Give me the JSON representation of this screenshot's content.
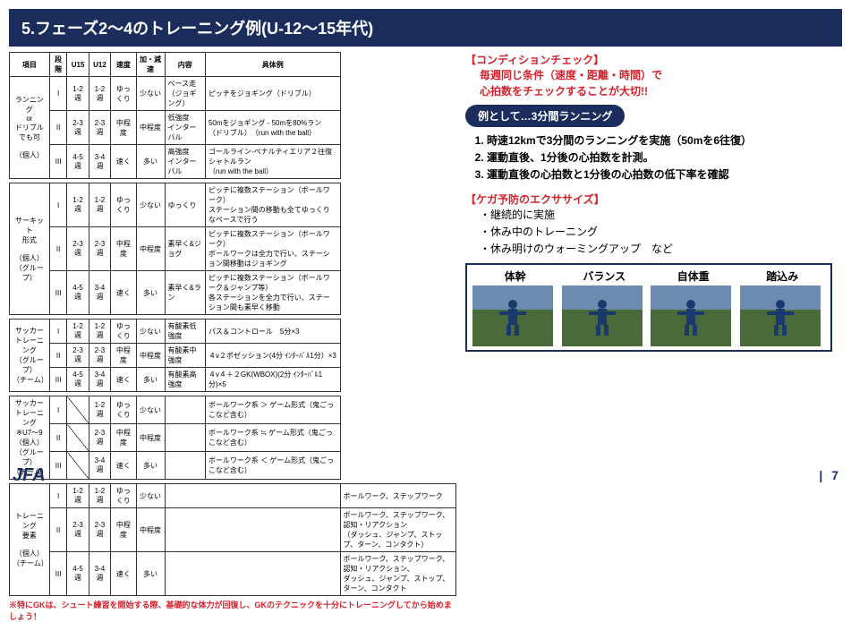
{
  "header": "5.フェーズ2〜4のトレーニング例(U-12〜15年代)",
  "table": {
    "headers": [
      "項目",
      "段階",
      "U15",
      "U12",
      "速度",
      "加・減速",
      "内容",
      "具体例"
    ],
    "groups": [
      {
        "name": "ランニング\nor\nドリブル\nでも可\n\n（個人）",
        "rows": [
          [
            "I",
            "1-2週",
            "1-2週",
            "ゆっくり",
            "少ない",
            "ベース走\n（ジョギング）",
            "ピッチをジョギング（ドリブル）"
          ],
          [
            "II",
            "2-3週",
            "2-3週",
            "中程度",
            "中程度",
            "低強度\nインターバル",
            "50mをジョギング - 50mを80%ラン\n（ドリブル）　（run with the ball）"
          ],
          [
            "III",
            "4-5週",
            "3-4週",
            "速く",
            "多い",
            "高強度\nインターバル",
            "ゴールライン-ペナルティエリア２往復シャトルラン\n（run with the ball）"
          ]
        ]
      },
      {
        "name": "サーキット\n形式\n\n（個人）\n（グループ）",
        "rows": [
          [
            "I",
            "1-2週",
            "1-2週",
            "ゆっくり",
            "少ない",
            "ゆっくり",
            "ピッチに複数ステーション（ボールワーク）\nステーション間の移動も全てゆっくりなペースで行う"
          ],
          [
            "II",
            "2-3週",
            "2-3週",
            "中程度",
            "中程度",
            "素早く&ジョグ",
            "ピッチに複数ステーション（ボールワーク）\nボールワークは全力で行い、ステーション間移動はジョギング"
          ],
          [
            "III",
            "4-5週",
            "3-4週",
            "速く",
            "多い",
            "素早く&ラン",
            "ピッチに複数ステーション（ボールワーク＆ジャンプ等）\n各ステーションを全力で行い、ステーション間も素早く移動"
          ]
        ]
      },
      {
        "name": "サッカー\nトレーニング\n（グループ）\n（チーム）",
        "rows": [
          [
            "I",
            "1-2週",
            "1-2週",
            "ゆっくり",
            "少ない",
            "有酸素低強度",
            "パス＆コントロール　5分×3"
          ],
          [
            "II",
            "2-3週",
            "2-3週",
            "中程度",
            "中程度",
            "有酸素中強度",
            "４v２ポゼッション(4分 ｲﾝﾀｰﾊﾞﾙ1分）×3"
          ],
          [
            "III",
            "4-5週",
            "3-4週",
            "速く",
            "多い",
            "有酸素高強度",
            "４v４＋２GK(WBOX)(2分 ｲﾝﾀｰﾊﾞﾙ1分)×5"
          ]
        ]
      },
      {
        "name": "サッカー\nトレーニング\n※U7〜9\n（個人）\n（グループ）\n（チーム）",
        "rows": [
          [
            "I",
            "/",
            "1-2週",
            "ゆっくり",
            "少ない",
            "",
            "ボールワーク系 ＞ ゲーム形式（鬼ごっこなど含む）"
          ],
          [
            "II",
            "/",
            "2-3週",
            "中程度",
            "中程度",
            "",
            "ボールワーク系 ≒ ゲーム形式（鬼ごっこなど含む）"
          ],
          [
            "III",
            "/",
            "3-4週",
            "速く",
            "多い",
            "",
            "ボールワーク系 ＜ ゲーム形式（鬼ごっこなど含む）"
          ]
        ]
      },
      {
        "name": "トレーニング\n要素\n\n（個人）\n（チーム）",
        "rows": [
          [
            "I",
            "1-2週",
            "1-2週",
            "ゆっくり",
            "少ない",
            "",
            "ボールワーク、ステップワーク",
            "colspan"
          ],
          [
            "II",
            "2-3週",
            "2-3週",
            "中程度",
            "中程度",
            "",
            "ボールワーク、ステップワーク、認知・リアクション\n（ダッシュ、ジャンプ、ストップ、ターン、コンタクト）",
            "colspan"
          ],
          [
            "III",
            "4-5週",
            "3-4週",
            "速く",
            "多い",
            "",
            "ボールワーク、ステップワーク、認知・リアクション、\nダッシュ、ジャンプ、ストップ、ターン、コンタクト",
            "colspan"
          ]
        ]
      }
    ]
  },
  "note": "※特にGKは、シュート練習を開始する際、基礎的な体力が回復し、GKのテクニックを十分にトレーニングしてから始めましょう！",
  "right": {
    "condition_title": "【コンディションチェック】",
    "condition_body1": "毎週同じ条件（速度・距離・時間）で",
    "condition_body2": "心拍数をチェックすることが大切!!",
    "pill": "例として…3分間ランニング",
    "steps": [
      "時速12kmで3分間のランニングを実施（50mを6往復）",
      "運動直後、1分後の心拍数を計測。",
      "運動直後の心拍数と1分後の心拍数の低下率を確認"
    ],
    "injury_title": "【ケガ予防のエクササイズ】",
    "injury_items": [
      "・継続的に実施",
      "・休み中のトレーニング",
      "・休み明けのウォーミングアップ　など"
    ],
    "exercises": [
      "体幹",
      "バランス",
      "自体重",
      "踏込み"
    ]
  },
  "footer": {
    "logo": "JFA",
    "page": "7"
  }
}
